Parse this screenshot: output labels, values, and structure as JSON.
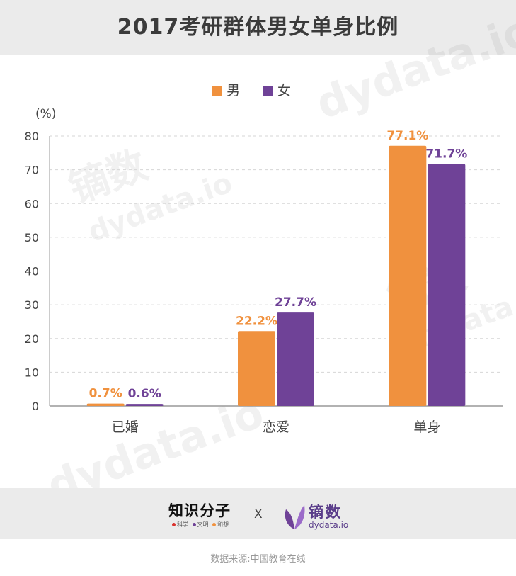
{
  "header": {
    "title": "2017考研群体男女单身比例"
  },
  "watermark": {
    "brand": "镝数",
    "url": "dydata.io"
  },
  "chart_data": {
    "type": "bar",
    "categories": [
      "已婚",
      "恋爱",
      "单身"
    ],
    "series": [
      {
        "name": "男",
        "values": [
          0.7,
          22.2,
          77.1
        ],
        "labels": [
          "0.7%",
          "22.2%",
          "77.1%"
        ],
        "color": "#f0913e"
      },
      {
        "name": "女",
        "values": [
          0.6,
          27.7,
          71.7
        ],
        "labels": [
          "0.6%",
          "27.7%",
          "71.7%"
        ],
        "color": "#6f4297"
      }
    ],
    "ylabel": "(%)",
    "ylim": [
      0,
      80
    ],
    "yticks": [
      "0",
      "10",
      "20",
      "30",
      "40",
      "50",
      "60",
      "70",
      "80"
    ],
    "grid": true,
    "legend": "top-center"
  },
  "footer": {
    "partner_logo": {
      "name": "知识分子",
      "tags": [
        "科学",
        "文明",
        "和想"
      ],
      "tag_colors": [
        "#d9322e",
        "#6f4297",
        "#f0913e"
      ]
    },
    "separator": "X",
    "brand_logo": {
      "name": "镝数",
      "url": "dydata.io"
    },
    "source": "数据来源:中国教育在线"
  }
}
